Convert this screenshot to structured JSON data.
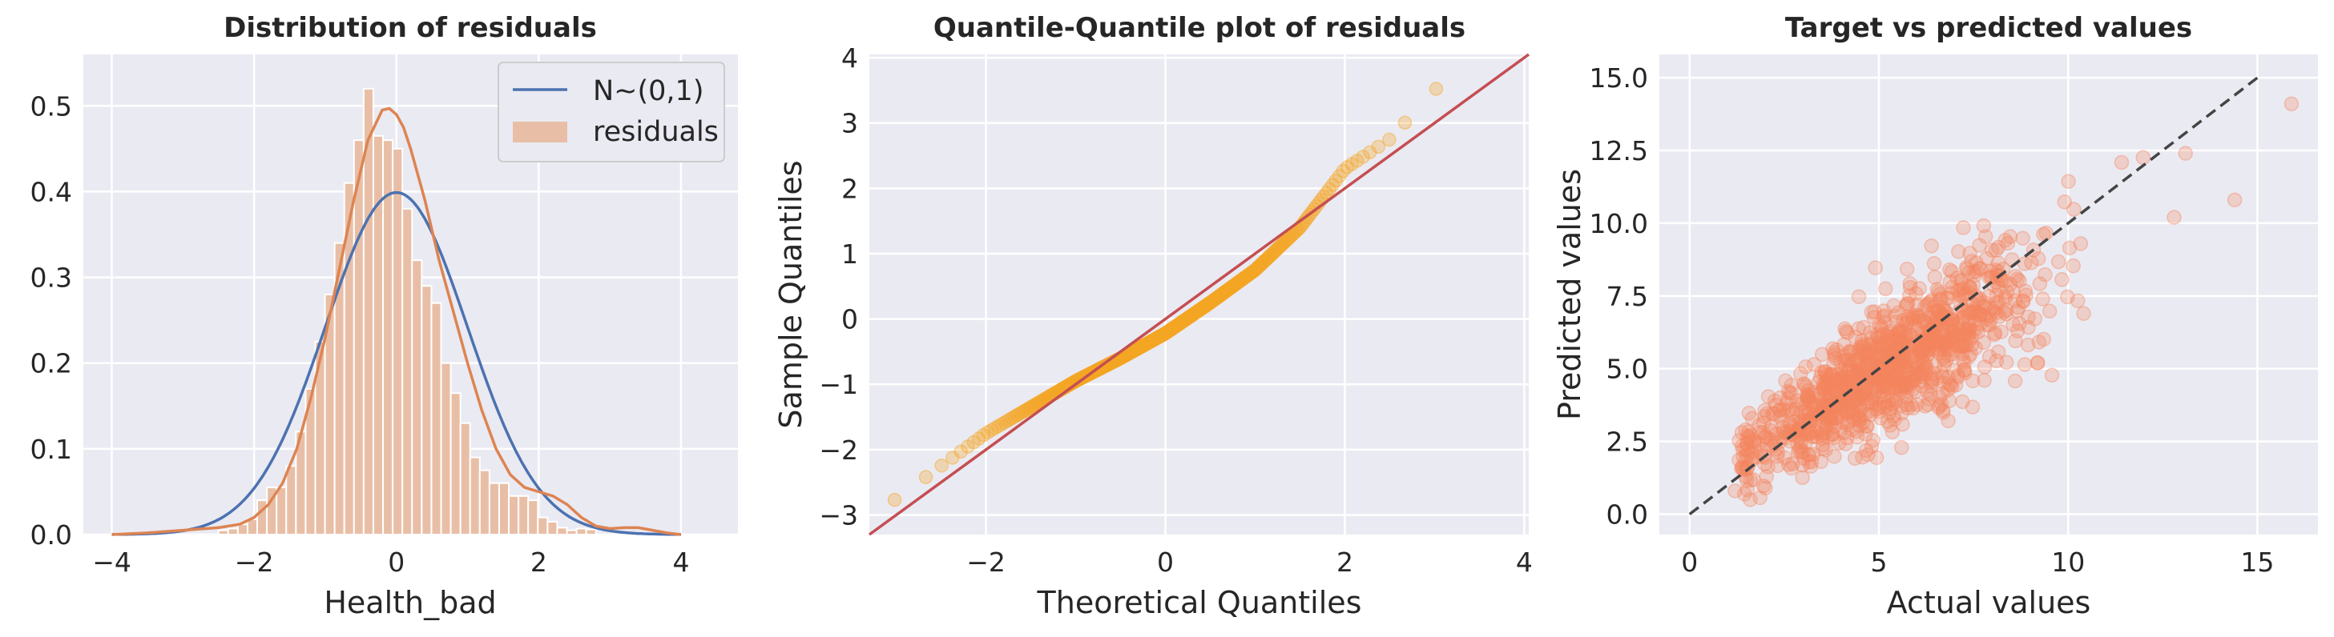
{
  "colors": {
    "panel_bg": "#eaeaf2",
    "grid": "#ffffff",
    "normal_curve": "#4c72b0",
    "kde_curve": "#dd8452",
    "hist_bar": "#e8bfa6",
    "qq_points": "#f5a623",
    "qq_line": "#c44e52",
    "scatter_points": "#f4845f",
    "diagonal": "#444444"
  },
  "chart_data": [
    {
      "type": "histogram",
      "title": "Distribution of residuals",
      "xlabel": "Health_bad",
      "ylabel": "",
      "xlim": [
        -4.4,
        4.8
      ],
      "ylim": [
        0,
        0.56
      ],
      "xticks": [
        -4,
        -2,
        0,
        2,
        4
      ],
      "yticks": [
        0.0,
        0.1,
        0.2,
        0.3,
        0.4,
        0.5
      ],
      "xtick_labels": [
        "−4",
        "−2",
        "0",
        "2",
        "4"
      ],
      "ytick_labels": [
        "0.0",
        "0.1",
        "0.2",
        "0.3",
        "0.4",
        "0.5"
      ],
      "grid": true,
      "legend": {
        "placement": "top-right",
        "entries": [
          "N~(0,1)",
          "residuals"
        ]
      },
      "bins": {
        "start": -2.5,
        "width": 0.136,
        "heights": [
          0.005,
          0.007,
          0.012,
          0.018,
          0.04,
          0.055,
          0.055,
          0.08,
          0.12,
          0.17,
          0.225,
          0.28,
          0.34,
          0.41,
          0.46,
          0.52,
          0.465,
          0.46,
          0.45,
          0.38,
          0.32,
          0.29,
          0.27,
          0.2,
          0.165,
          0.13,
          0.09,
          0.075,
          0.06,
          0.06,
          0.045,
          0.045,
          0.04,
          0.02,
          0.015,
          0.008,
          0.005,
          0.007,
          0.006
        ]
      },
      "series": [
        {
          "name": "N~(0,1)",
          "kind": "normal-pdf",
          "mean": 0,
          "sd": 1
        },
        {
          "name": "kde",
          "kind": "kde",
          "x": [
            -4.0,
            -3.5,
            -3.0,
            -2.5,
            -2.2,
            -2.0,
            -1.8,
            -1.6,
            -1.4,
            -1.2,
            -1.0,
            -0.8,
            -0.6,
            -0.4,
            -0.2,
            -0.1,
            0.0,
            0.1,
            0.2,
            0.4,
            0.6,
            0.8,
            1.0,
            1.2,
            1.4,
            1.6,
            1.8,
            2.0,
            2.2,
            2.4,
            2.6,
            2.8,
            3.0,
            3.2,
            3.4,
            3.6,
            3.8,
            4.0
          ],
          "y": [
            0.0,
            0.002,
            0.005,
            0.008,
            0.012,
            0.02,
            0.035,
            0.06,
            0.1,
            0.16,
            0.23,
            0.31,
            0.39,
            0.46,
            0.495,
            0.497,
            0.49,
            0.475,
            0.45,
            0.39,
            0.32,
            0.26,
            0.2,
            0.145,
            0.1,
            0.07,
            0.055,
            0.05,
            0.045,
            0.035,
            0.02,
            0.01,
            0.007,
            0.008,
            0.008,
            0.005,
            0.002,
            0.0
          ]
        }
      ]
    },
    {
      "type": "scatter",
      "title": "Quantile-Quantile plot of residuals",
      "xlabel": "Theoretical Quantiles",
      "ylabel": "Sample Quantiles",
      "xlim": [
        -3.3,
        4.05
      ],
      "ylim": [
        -3.3,
        4.05
      ],
      "xticks": [
        -2,
        0,
        2,
        4
      ],
      "yticks": [
        -3,
        -2,
        -1,
        0,
        1,
        2,
        3,
        4
      ],
      "xtick_labels": [
        "−2",
        "0",
        "2",
        "4"
      ],
      "ytick_labels": [
        "−3",
        "−2",
        "−1",
        "0",
        "1",
        "2",
        "3",
        "4"
      ],
      "grid": true,
      "reference_line": {
        "x": [
          -3.3,
          4.05
        ],
        "y": [
          -3.3,
          4.05
        ]
      },
      "qq_mapping": {
        "x_anchor": [
          -3.2,
          -2.5,
          -2.0,
          -1.5,
          -1.0,
          -0.5,
          0.0,
          0.5,
          1.0,
          1.5,
          2.0,
          2.5,
          3.0,
          3.2
        ],
        "y_anchor": [
          -2.95,
          -2.25,
          -1.75,
          -1.35,
          -0.95,
          -0.6,
          -0.22,
          0.25,
          0.75,
          1.4,
          2.3,
          2.75,
          3.5,
          3.75
        ],
        "n_points": 400
      }
    },
    {
      "type": "scatter",
      "title": "Target vs predicted values",
      "xlabel": "Actual values",
      "ylabel": "Predicted values",
      "xlim": [
        -0.8,
        16.6
      ],
      "ylim": [
        -0.7,
        15.8
      ],
      "xticks": [
        0,
        5,
        10,
        15
      ],
      "yticks": [
        0.0,
        2.5,
        5.0,
        7.5,
        10.0,
        12.5,
        15.0
      ],
      "xtick_labels": [
        "0",
        "5",
        "10",
        "15"
      ],
      "ytick_labels": [
        "0.0",
        "2.5",
        "5.0",
        "7.5",
        "10.0",
        "12.5",
        "15.0"
      ],
      "grid": true,
      "diagonal": {
        "x": [
          0,
          15
        ],
        "y": [
          0,
          15
        ],
        "style": "dashed"
      },
      "points_model": {
        "n": 1100,
        "x_mean": 5.3,
        "x_sd": 1.9,
        "slope": 0.78,
        "intercept": 0.9,
        "noise_sd": 0.9
      },
      "outliers": [
        [
          15.9,
          14.1
        ],
        [
          14.4,
          10.8
        ],
        [
          13.1,
          12.4
        ],
        [
          12.8,
          10.2
        ],
        [
          1.2,
          0.8
        ],
        [
          1.6,
          0.5
        ],
        [
          2.0,
          0.9
        ],
        [
          9.2,
          5.2
        ]
      ]
    }
  ]
}
